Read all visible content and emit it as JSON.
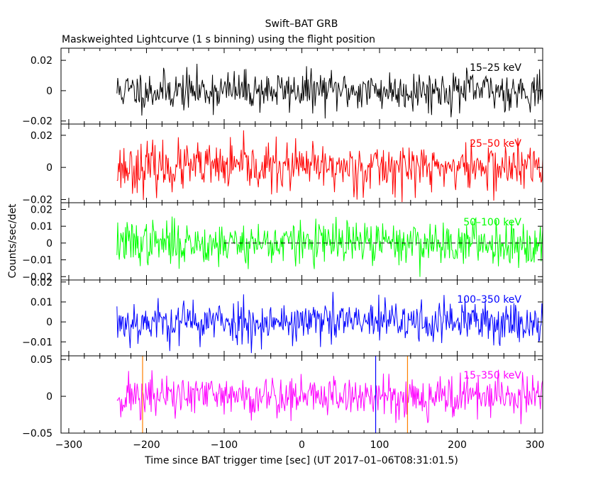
{
  "chart_data": {
    "type": "line",
    "title": "Swift–BAT GRB",
    "subtitle": "Maskweighted Lightcurve (1 s binning) using the flight position",
    "xlabel": "Time since BAT trigger time [sec] (UT 2017–01–06T08:31:01.5)",
    "ylabel": "Counts/sec/det",
    "xlim": [
      -310,
      310
    ],
    "data_start": -238,
    "data_end": 310,
    "x_ticks": [
      -300,
      -200,
      -100,
      0,
      100,
      200,
      300
    ],
    "x_tick_labels": [
      "−300",
      "−200",
      "−100",
      "0",
      "100",
      "200",
      "300"
    ],
    "vertical_markers": [
      {
        "x": -205,
        "color": "#ff8000"
      },
      {
        "x": 95,
        "color": "#0000ff"
      },
      {
        "x": 136,
        "color": "#ff8000"
      }
    ],
    "series": [
      {
        "name": "15–25 keV",
        "color": "#000000",
        "ylim": [
          -0.022,
          0.028
        ],
        "y_ticks": [
          0.02,
          0,
          -0.02
        ],
        "y_tick_labels": [
          "0.02",
          "0",
          "−0.02"
        ],
        "amplitude": 0.0065,
        "seed": 11,
        "zero_line_from": null
      },
      {
        "name": "25–50 keV",
        "color": "#ff0000",
        "ylim": [
          -0.022,
          0.027
        ],
        "y_ticks": [
          0.02,
          0,
          -0.02
        ],
        "y_tick_labels": [
          "0.02",
          "0",
          "−0.02"
        ],
        "amplitude": 0.0075,
        "seed": 23,
        "zero_line_from": null
      },
      {
        "name": "50–100 keV",
        "color": "#00ff00",
        "ylim": [
          -0.022,
          0.024
        ],
        "y_ticks": [
          0.02,
          0.01,
          0,
          -0.01,
          -0.02
        ],
        "y_tick_labels": [
          "0.02",
          "0.01",
          "0",
          "−0.01",
          "−0.02"
        ],
        "amplitude": 0.0065,
        "seed": 37,
        "zero_line_from": -100
      },
      {
        "name": "100–350 keV",
        "color": "#0000ff",
        "ylim": [
          -0.017,
          0.021
        ],
        "y_ticks": [
          0.02,
          0.01,
          0,
          -0.01
        ],
        "y_tick_labels": [
          "0.02",
          "0.01",
          "0",
          "−0.01"
        ],
        "amplitude": 0.0055,
        "seed": 53,
        "zero_line_from": null
      },
      {
        "name": "15–350 keV",
        "color": "#ff00ff",
        "ylim": [
          -0.05,
          0.055
        ],
        "y_ticks": [
          0.05,
          0,
          -0.05
        ],
        "y_tick_labels": [
          "0.05",
          "0",
          "−0.05"
        ],
        "amplitude": 0.015,
        "seed": 71,
        "zero_line_from": null
      }
    ]
  }
}
